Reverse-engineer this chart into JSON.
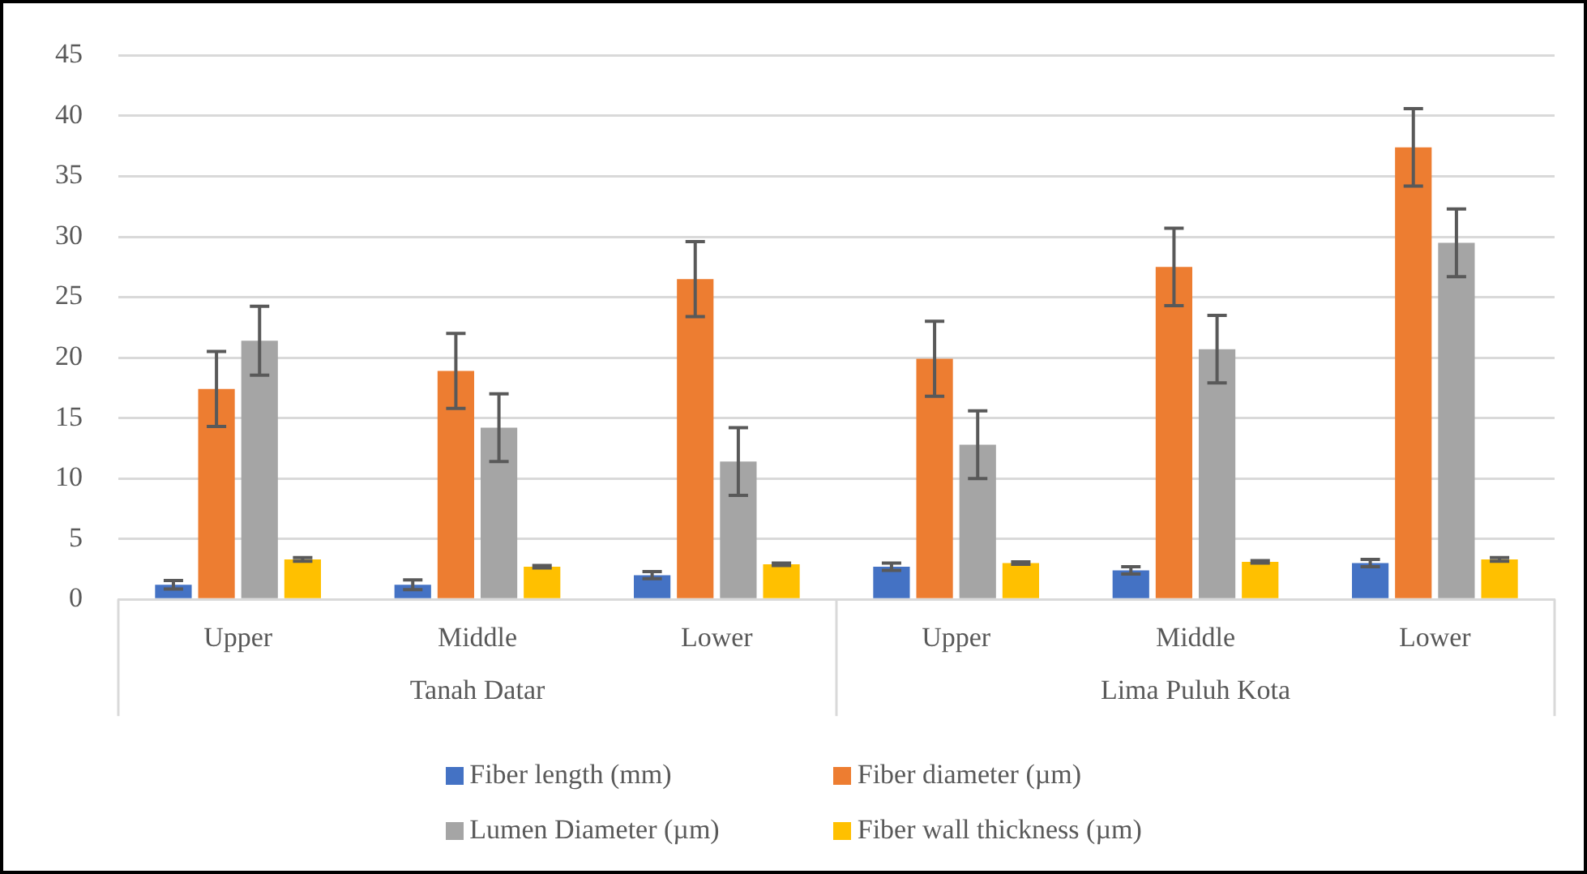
{
  "chart_data": {
    "type": "bar",
    "categories": [
      "Upper",
      "Middle",
      "Lower",
      "Upper",
      "Middle",
      "Lower"
    ],
    "annotations": [
      "Tanah Datar",
      "Lima Puluh Kota"
    ],
    "series": [
      {
        "name": "Fiber length (mm)",
        "color": "#4472c4",
        "values": [
          1.2,
          1.2,
          2.0,
          2.7,
          2.4,
          3.0
        ],
        "errors": [
          0.35,
          0.4,
          0.3,
          0.3,
          0.3,
          0.3
        ]
      },
      {
        "name": "Fiber diameter (µm)",
        "color": "#ed7d31",
        "values": [
          17.4,
          18.9,
          26.5,
          19.9,
          27.5,
          37.4
        ],
        "errors": [
          3.1,
          3.1,
          3.1,
          3.1,
          3.2,
          3.2
        ]
      },
      {
        "name": "Lumen Diameter (µm)",
        "color": "#a5a5a5",
        "values": [
          21.4,
          14.2,
          11.4,
          12.8,
          20.7,
          29.5
        ],
        "errors": [
          2.85,
          2.8,
          2.8,
          2.8,
          2.8,
          2.8
        ]
      },
      {
        "name": "Fiber wall thickness (µm)",
        "color": "#ffc000",
        "values": [
          3.3,
          2.7,
          2.9,
          3.0,
          3.1,
          3.3
        ],
        "errors": [
          0.15,
          0.1,
          0.1,
          0.1,
          0.1,
          0.15
        ]
      }
    ],
    "ylim": [
      0,
      45
    ],
    "yticks": [
      0,
      5,
      10,
      15,
      20,
      25,
      30,
      35,
      40,
      45
    ],
    "grid": "y",
    "legend": "bottom"
  }
}
